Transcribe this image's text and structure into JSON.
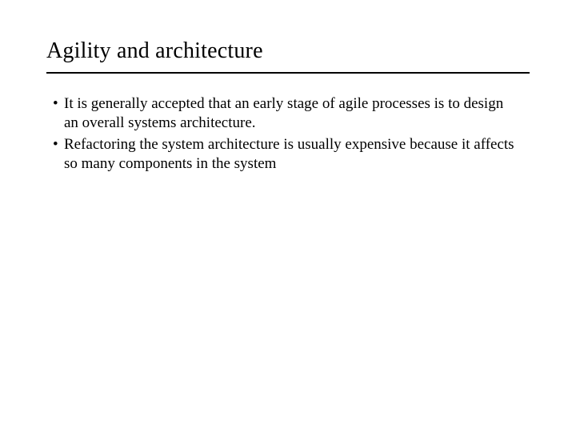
{
  "slide": {
    "title": "Agility and architecture",
    "title_fontsize": 28,
    "body_fontsize": 19,
    "text_color": "#000000",
    "background_color": "#ffffff",
    "rule_color": "#000000",
    "rule_width": 2,
    "bullets": [
      "It is generally accepted that an early stage of agile processes is to design an overall systems architecture.",
      "Refactoring the system architecture is usually expensive because it affects so many components in the system"
    ]
  }
}
